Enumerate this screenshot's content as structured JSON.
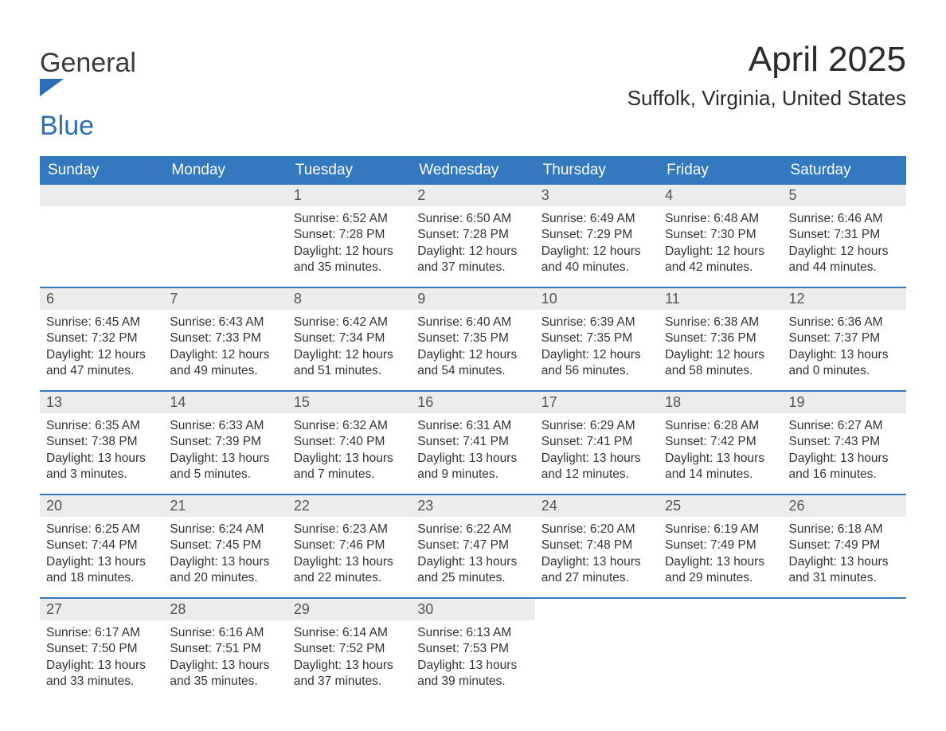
{
  "brand": {
    "word1": "General",
    "word2": "Blue",
    "color_text": "#3a3a3a",
    "color_accent": "#2d6fb6"
  },
  "header": {
    "month_title": "April 2025",
    "location": "Suffolk, Virginia, United States"
  },
  "style": {
    "header_bg": "#3478c0",
    "header_fg": "#ffffff",
    "daynum_bg": "#ececec",
    "daynum_fg": "#555555",
    "body_fg": "#333333",
    "week_divider": "#3478c0",
    "page_bg": "#ffffff",
    "title_font_size": 44,
    "location_font_size": 26,
    "dow_font_size": 19,
    "daynum_font_size": 18,
    "body_font_size": 15.5
  },
  "days_of_week": [
    "Sunday",
    "Monday",
    "Tuesday",
    "Wednesday",
    "Thursday",
    "Friday",
    "Saturday"
  ],
  "weeks": [
    [
      {
        "empty": true
      },
      {
        "empty": true
      },
      {
        "num": "1",
        "sunrise": "Sunrise: 6:52 AM",
        "sunset": "Sunset: 7:28 PM",
        "daylight1": "Daylight: 12 hours",
        "daylight2": "and 35 minutes."
      },
      {
        "num": "2",
        "sunrise": "Sunrise: 6:50 AM",
        "sunset": "Sunset: 7:28 PM",
        "daylight1": "Daylight: 12 hours",
        "daylight2": "and 37 minutes."
      },
      {
        "num": "3",
        "sunrise": "Sunrise: 6:49 AM",
        "sunset": "Sunset: 7:29 PM",
        "daylight1": "Daylight: 12 hours",
        "daylight2": "and 40 minutes."
      },
      {
        "num": "4",
        "sunrise": "Sunrise: 6:48 AM",
        "sunset": "Sunset: 7:30 PM",
        "daylight1": "Daylight: 12 hours",
        "daylight2": "and 42 minutes."
      },
      {
        "num": "5",
        "sunrise": "Sunrise: 6:46 AM",
        "sunset": "Sunset: 7:31 PM",
        "daylight1": "Daylight: 12 hours",
        "daylight2": "and 44 minutes."
      }
    ],
    [
      {
        "num": "6",
        "sunrise": "Sunrise: 6:45 AM",
        "sunset": "Sunset: 7:32 PM",
        "daylight1": "Daylight: 12 hours",
        "daylight2": "and 47 minutes."
      },
      {
        "num": "7",
        "sunrise": "Sunrise: 6:43 AM",
        "sunset": "Sunset: 7:33 PM",
        "daylight1": "Daylight: 12 hours",
        "daylight2": "and 49 minutes."
      },
      {
        "num": "8",
        "sunrise": "Sunrise: 6:42 AM",
        "sunset": "Sunset: 7:34 PM",
        "daylight1": "Daylight: 12 hours",
        "daylight2": "and 51 minutes."
      },
      {
        "num": "9",
        "sunrise": "Sunrise: 6:40 AM",
        "sunset": "Sunset: 7:35 PM",
        "daylight1": "Daylight: 12 hours",
        "daylight2": "and 54 minutes."
      },
      {
        "num": "10",
        "sunrise": "Sunrise: 6:39 AM",
        "sunset": "Sunset: 7:35 PM",
        "daylight1": "Daylight: 12 hours",
        "daylight2": "and 56 minutes."
      },
      {
        "num": "11",
        "sunrise": "Sunrise: 6:38 AM",
        "sunset": "Sunset: 7:36 PM",
        "daylight1": "Daylight: 12 hours",
        "daylight2": "and 58 minutes."
      },
      {
        "num": "12",
        "sunrise": "Sunrise: 6:36 AM",
        "sunset": "Sunset: 7:37 PM",
        "daylight1": "Daylight: 13 hours",
        "daylight2": "and 0 minutes."
      }
    ],
    [
      {
        "num": "13",
        "sunrise": "Sunrise: 6:35 AM",
        "sunset": "Sunset: 7:38 PM",
        "daylight1": "Daylight: 13 hours",
        "daylight2": "and 3 minutes."
      },
      {
        "num": "14",
        "sunrise": "Sunrise: 6:33 AM",
        "sunset": "Sunset: 7:39 PM",
        "daylight1": "Daylight: 13 hours",
        "daylight2": "and 5 minutes."
      },
      {
        "num": "15",
        "sunrise": "Sunrise: 6:32 AM",
        "sunset": "Sunset: 7:40 PM",
        "daylight1": "Daylight: 13 hours",
        "daylight2": "and 7 minutes."
      },
      {
        "num": "16",
        "sunrise": "Sunrise: 6:31 AM",
        "sunset": "Sunset: 7:41 PM",
        "daylight1": "Daylight: 13 hours",
        "daylight2": "and 9 minutes."
      },
      {
        "num": "17",
        "sunrise": "Sunrise: 6:29 AM",
        "sunset": "Sunset: 7:41 PM",
        "daylight1": "Daylight: 13 hours",
        "daylight2": "and 12 minutes."
      },
      {
        "num": "18",
        "sunrise": "Sunrise: 6:28 AM",
        "sunset": "Sunset: 7:42 PM",
        "daylight1": "Daylight: 13 hours",
        "daylight2": "and 14 minutes."
      },
      {
        "num": "19",
        "sunrise": "Sunrise: 6:27 AM",
        "sunset": "Sunset: 7:43 PM",
        "daylight1": "Daylight: 13 hours",
        "daylight2": "and 16 minutes."
      }
    ],
    [
      {
        "num": "20",
        "sunrise": "Sunrise: 6:25 AM",
        "sunset": "Sunset: 7:44 PM",
        "daylight1": "Daylight: 13 hours",
        "daylight2": "and 18 minutes."
      },
      {
        "num": "21",
        "sunrise": "Sunrise: 6:24 AM",
        "sunset": "Sunset: 7:45 PM",
        "daylight1": "Daylight: 13 hours",
        "daylight2": "and 20 minutes."
      },
      {
        "num": "22",
        "sunrise": "Sunrise: 6:23 AM",
        "sunset": "Sunset: 7:46 PM",
        "daylight1": "Daylight: 13 hours",
        "daylight2": "and 22 minutes."
      },
      {
        "num": "23",
        "sunrise": "Sunrise: 6:22 AM",
        "sunset": "Sunset: 7:47 PM",
        "daylight1": "Daylight: 13 hours",
        "daylight2": "and 25 minutes."
      },
      {
        "num": "24",
        "sunrise": "Sunrise: 6:20 AM",
        "sunset": "Sunset: 7:48 PM",
        "daylight1": "Daylight: 13 hours",
        "daylight2": "and 27 minutes."
      },
      {
        "num": "25",
        "sunrise": "Sunrise: 6:19 AM",
        "sunset": "Sunset: 7:49 PM",
        "daylight1": "Daylight: 13 hours",
        "daylight2": "and 29 minutes."
      },
      {
        "num": "26",
        "sunrise": "Sunrise: 6:18 AM",
        "sunset": "Sunset: 7:49 PM",
        "daylight1": "Daylight: 13 hours",
        "daylight2": "and 31 minutes."
      }
    ],
    [
      {
        "num": "27",
        "sunrise": "Sunrise: 6:17 AM",
        "sunset": "Sunset: 7:50 PM",
        "daylight1": "Daylight: 13 hours",
        "daylight2": "and 33 minutes."
      },
      {
        "num": "28",
        "sunrise": "Sunrise: 6:16 AM",
        "sunset": "Sunset: 7:51 PM",
        "daylight1": "Daylight: 13 hours",
        "daylight2": "and 35 minutes."
      },
      {
        "num": "29",
        "sunrise": "Sunrise: 6:14 AM",
        "sunset": "Sunset: 7:52 PM",
        "daylight1": "Daylight: 13 hours",
        "daylight2": "and 37 minutes."
      },
      {
        "num": "30",
        "sunrise": "Sunrise: 6:13 AM",
        "sunset": "Sunset: 7:53 PM",
        "daylight1": "Daylight: 13 hours",
        "daylight2": "and 39 minutes."
      },
      {
        "empty": true,
        "blank_bar": true
      },
      {
        "empty": true,
        "blank_bar": true
      },
      {
        "empty": true,
        "blank_bar": true
      }
    ]
  ]
}
